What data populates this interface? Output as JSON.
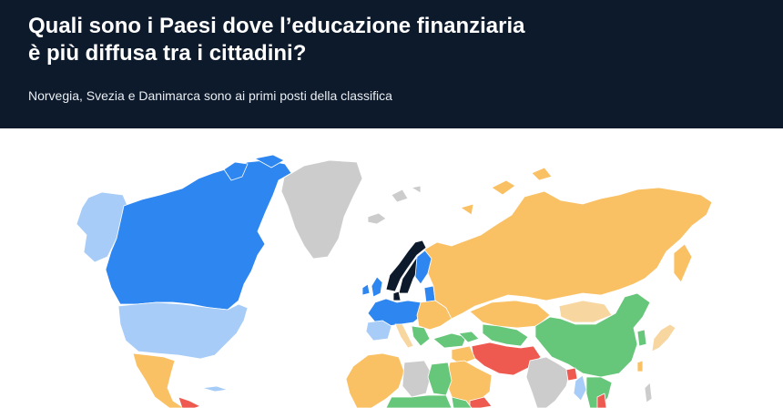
{
  "header": {
    "title_line1": "Quali sono i Paesi dove l’educazione finanziaria",
    "title_line2": "è più diffusa tra i cittadini?",
    "subtitle": "Norvegia, Svezia e Danimarca sono ai primi posti della classifica"
  },
  "colors": {
    "header_bg": "#0d1a2b",
    "top_rank": "#0d1a2b",
    "very_high": "#2e86f0",
    "high": "#a6ccf7",
    "medium": "#f9c064",
    "medium_low": "#f8d6a0",
    "low": "#66c67a",
    "very_low": "#ef5a50",
    "no_data": "#cccccc"
  }
}
